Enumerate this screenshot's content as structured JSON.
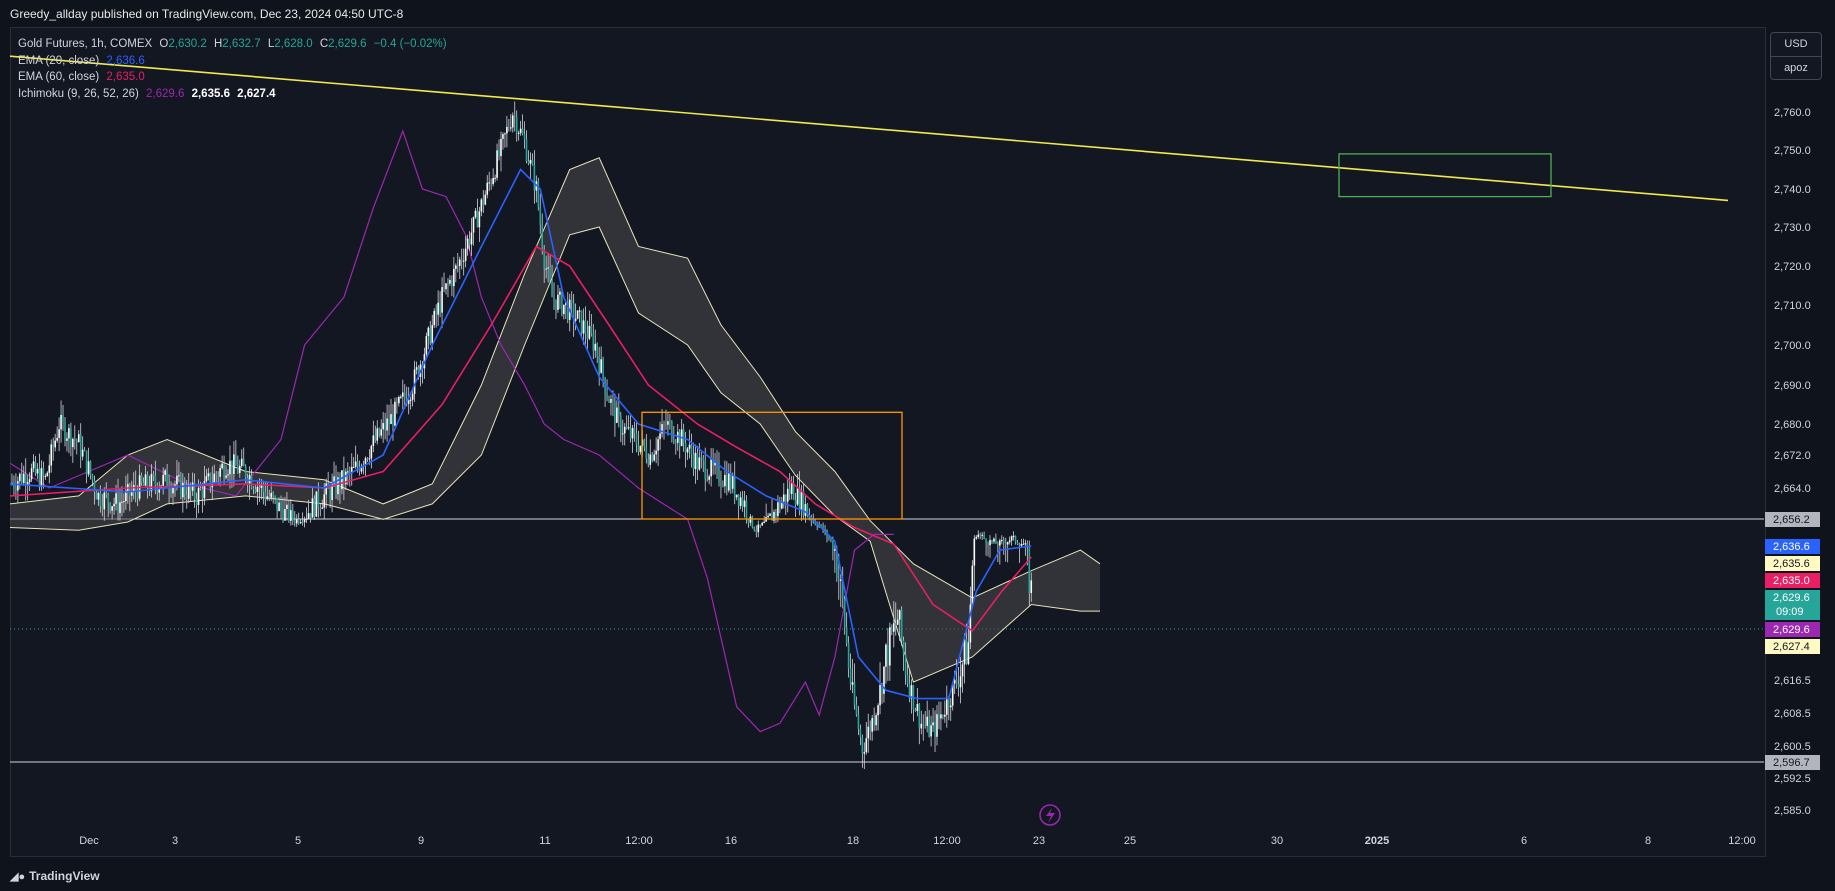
{
  "header": {
    "published": "Greedy_allday published on TradingView.com, Dec 23, 2024 04:50 UTC-8"
  },
  "legend": {
    "symbol": "Gold Futures, 1h, COMEX",
    "o_label": "O",
    "o": "2,630.2",
    "h_label": "H",
    "h": "2,632.7",
    "l_label": "L",
    "l": "2,628.0",
    "c_label": "C",
    "c": "2,629.6",
    "change": "−0.4 (−0.02%)",
    "ema20_label": "EMA (20, close)",
    "ema20": "2,636.6",
    "ema60_label": "EMA (60, close)",
    "ema60": "2,635.0",
    "ichi_label": "Ichimoku (9, 26, 52, 26)",
    "ichi_1": "2,629.6",
    "ichi_2": "2,635.6",
    "ichi_3": "2,627.4"
  },
  "currency": {
    "code": "USD",
    "user": "apoz"
  },
  "footer": {
    "brand": "TradingView"
  },
  "colors": {
    "bg": "#131722",
    "up": "#26a69a",
    "wick": "#d1d4dc",
    "ema20": "#2962ff",
    "ema60": "#e91e63",
    "chikou": "#9c27b0",
    "cloud_line": "#e8e4b8",
    "cloud_fill": "#4a4a4a",
    "trend": "#f2e94e",
    "box_orange": "#ff9800",
    "box_green": "#4caf50"
  },
  "chart_data": {
    "type": "candlestick",
    "y_ticks": [
      "2,760.0",
      "2,750.0",
      "2,740.0",
      "2,730.0",
      "2,720.0",
      "2,710.0",
      "2,700.0",
      "2,690.0",
      "2,680.0",
      "2,672.0",
      "2,664.0",
      "2,616.5",
      "2,608.5",
      "2,600.5",
      "2,592.5",
      "2,585.0"
    ],
    "x_ticks": [
      "Dec",
      "3",
      "5",
      "9",
      "11",
      "12:00",
      "16",
      "18",
      "12:00",
      "23",
      "25",
      "30",
      "2025",
      "6",
      "8",
      "12:00"
    ],
    "price_labels": [
      {
        "text": "2,656.2",
        "kind": "level"
      },
      {
        "text": "2,636.6",
        "kind": "ema20"
      },
      {
        "text": "2,635.6",
        "kind": "ichi"
      },
      {
        "text": "2,635.0",
        "kind": "ema60"
      },
      {
        "text": "2,629.6",
        "kind": "last",
        "countdown": "09:09"
      },
      {
        "text": "2,629.6",
        "kind": "chikou"
      },
      {
        "text": "2,627.4",
        "kind": "ichi"
      },
      {
        "text": "2,596.7",
        "kind": "level"
      }
    ],
    "horizontal_levels": [
      2656.2,
      2596.7
    ],
    "close_path": [
      [
        0,
        2665
      ],
      [
        10,
        2668
      ],
      [
        18,
        2666
      ],
      [
        25,
        2680
      ],
      [
        35,
        2675
      ],
      [
        45,
        2662
      ],
      [
        55,
        2660
      ],
      [
        65,
        2664
      ],
      [
        80,
        2666
      ],
      [
        95,
        2662
      ],
      [
        110,
        2670
      ],
      [
        120,
        2668
      ],
      [
        135,
        2660
      ],
      [
        145,
        2655
      ],
      [
        160,
        2662
      ],
      [
        175,
        2668
      ],
      [
        185,
        2675
      ],
      [
        195,
        2682
      ],
      [
        205,
        2690
      ],
      [
        212,
        2700
      ],
      [
        220,
        2712
      ],
      [
        228,
        2720
      ],
      [
        236,
        2730
      ],
      [
        243,
        2740
      ],
      [
        250,
        2750
      ],
      [
        256,
        2760
      ],
      [
        262,
        2752
      ],
      [
        268,
        2740
      ],
      [
        272,
        2722
      ],
      [
        276,
        2712
      ],
      [
        282,
        2710
      ],
      [
        290,
        2706
      ],
      [
        298,
        2700
      ],
      [
        304,
        2688
      ],
      [
        310,
        2680
      ],
      [
        318,
        2676
      ],
      [
        326,
        2672
      ],
      [
        334,
        2680
      ],
      [
        342,
        2676
      ],
      [
        350,
        2670
      ],
      [
        358,
        2668
      ],
      [
        366,
        2666
      ],
      [
        374,
        2660
      ],
      [
        380,
        2648
      ],
      [
        386,
        2655
      ],
      [
        392,
        2660
      ],
      [
        398,
        2664
      ],
      [
        404,
        2660
      ],
      [
        412,
        2652
      ],
      [
        418,
        2640
      ],
      [
        424,
        2628
      ],
      [
        430,
        2610
      ],
      [
        434,
        2600
      ],
      [
        440,
        2608
      ],
      [
        446,
        2620
      ],
      [
        452,
        2626
      ],
      [
        458,
        2615
      ],
      [
        464,
        2606
      ],
      [
        470,
        2604
      ],
      [
        476,
        2610
      ],
      [
        482,
        2616
      ],
      [
        488,
        2622
      ],
      [
        492,
        2646
      ],
      [
        498,
        2640
      ],
      [
        504,
        2638
      ],
      [
        510,
        2642
      ],
      [
        516,
        2638
      ],
      [
        520,
        2630
      ]
    ],
    "ema20_path": [
      [
        0,
        2665
      ],
      [
        60,
        2663
      ],
      [
        120,
        2666
      ],
      [
        160,
        2664
      ],
      [
        190,
        2672
      ],
      [
        215,
        2700
      ],
      [
        240,
        2725
      ],
      [
        260,
        2745
      ],
      [
        270,
        2740
      ],
      [
        282,
        2712
      ],
      [
        300,
        2692
      ],
      [
        320,
        2680
      ],
      [
        345,
        2676
      ],
      [
        365,
        2668
      ],
      [
        385,
        2662
      ],
      [
        405,
        2658
      ],
      [
        420,
        2640
      ],
      [
        432,
        2620
      ],
      [
        446,
        2614
      ],
      [
        462,
        2612
      ],
      [
        478,
        2612
      ],
      [
        492,
        2630
      ],
      [
        504,
        2636
      ],
      [
        520,
        2636.6
      ]
    ],
    "ema60_path": [
      [
        0,
        2662
      ],
      [
        60,
        2664
      ],
      [
        120,
        2665
      ],
      [
        160,
        2664
      ],
      [
        190,
        2668
      ],
      [
        220,
        2685
      ],
      [
        245,
        2705
      ],
      [
        268,
        2725
      ],
      [
        285,
        2720
      ],
      [
        305,
        2705
      ],
      [
        325,
        2690
      ],
      [
        350,
        2680
      ],
      [
        370,
        2674
      ],
      [
        392,
        2668
      ],
      [
        410,
        2660
      ],
      [
        430,
        2650
      ],
      [
        450,
        2638
      ],
      [
        470,
        2628
      ],
      [
        490,
        2624
      ],
      [
        505,
        2630
      ],
      [
        520,
        2635.0
      ]
    ],
    "cloud_upper": [
      [
        0,
        2660
      ],
      [
        35,
        2662
      ],
      [
        60,
        2672
      ],
      [
        80,
        2676
      ],
      [
        120,
        2668
      ],
      [
        160,
        2666
      ],
      [
        190,
        2660
      ],
      [
        215,
        2665
      ],
      [
        240,
        2690
      ],
      [
        262,
        2718
      ],
      [
        285,
        2745
      ],
      [
        300,
        2748
      ],
      [
        320,
        2725
      ],
      [
        345,
        2722
      ],
      [
        362,
        2705
      ],
      [
        382,
        2692
      ],
      [
        400,
        2678
      ],
      [
        420,
        2668
      ],
      [
        438,
        2655
      ],
      [
        460,
        2634
      ],
      [
        490,
        2629
      ],
      [
        520,
        2633
      ],
      [
        545,
        2636
      ],
      [
        555,
        2634
      ]
    ],
    "cloud_lower": [
      [
        0,
        2650
      ],
      [
        35,
        2648
      ],
      [
        60,
        2654
      ],
      [
        80,
        2660
      ],
      [
        120,
        2662
      ],
      [
        160,
        2660
      ],
      [
        190,
        2656
      ],
      [
        215,
        2660
      ],
      [
        240,
        2672
      ],
      [
        262,
        2700
      ],
      [
        285,
        2728
      ],
      [
        300,
        2730
      ],
      [
        320,
        2708
      ],
      [
        345,
        2700
      ],
      [
        362,
        2688
      ],
      [
        382,
        2680
      ],
      [
        400,
        2667
      ],
      [
        420,
        2657
      ],
      [
        438,
        2640
      ],
      [
        460,
        2616
      ],
      [
        490,
        2620
      ],
      [
        520,
        2628
      ],
      [
        545,
        2627
      ],
      [
        555,
        2627
      ]
    ],
    "chikou_path": [
      [
        0,
        2670
      ],
      [
        20,
        2664
      ],
      [
        40,
        2668
      ],
      [
        60,
        2672
      ],
      [
        90,
        2665
      ],
      [
        115,
        2662
      ],
      [
        138,
        2676
      ],
      [
        150,
        2700
      ],
      [
        170,
        2712
      ],
      [
        185,
        2735
      ],
      [
        200,
        2755
      ],
      [
        210,
        2740
      ],
      [
        222,
        2738
      ],
      [
        232,
        2728
      ],
      [
        240,
        2712
      ],
      [
        250,
        2700
      ],
      [
        262,
        2690
      ],
      [
        272,
        2680
      ],
      [
        282,
        2676
      ],
      [
        300,
        2672
      ],
      [
        320,
        2664
      ],
      [
        345,
        2656
      ],
      [
        355,
        2632
      ],
      [
        370,
        2610
      ],
      [
        382,
        2604
      ],
      [
        392,
        2606
      ],
      [
        405,
        2616
      ],
      [
        412,
        2608
      ],
      [
        420,
        2620
      ],
      [
        430,
        2636
      ],
      [
        440,
        2645
      ],
      [
        450,
        2645
      ]
    ],
    "trend_line": [
      [
        2761,
        0
      ],
      [
        2737,
        1
      ]
    ],
    "orange_box": {
      "y_top": 2683,
      "y_bottom": 2656.2
    },
    "green_box": {
      "y_top": 2749,
      "y_bottom": 2738
    }
  }
}
